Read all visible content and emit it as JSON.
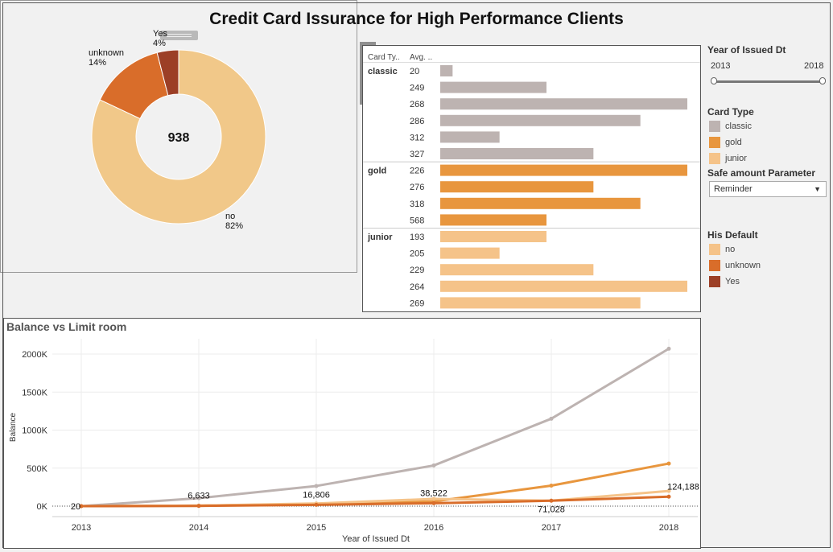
{
  "title": "Credit Card Issurance for High Performance Clients",
  "donut": {
    "center_label": "938",
    "slices": [
      {
        "name": "no",
        "pct_label": "82%",
        "value": 82,
        "color": "#f1c889"
      },
      {
        "name": "unknown",
        "pct_label": "14%",
        "value": 14,
        "color": "#d96d2a"
      },
      {
        "name": "Yes",
        "pct_label": "4%",
        "value": 4,
        "color": "#9c3f26"
      }
    ]
  },
  "bar_table": {
    "header_card": "Card Ty..",
    "header_avg": "Avg. ..",
    "groups": [
      {
        "name": "classic",
        "color": "#bdb3b1",
        "rows": [
          {
            "label": "20",
            "value": 0.05
          },
          {
            "label": "249",
            "value": 0.43
          },
          {
            "label": "268",
            "value": 1.0
          },
          {
            "label": "286",
            "value": 0.81
          },
          {
            "label": "312",
            "value": 0.24
          },
          {
            "label": "327",
            "value": 0.62
          }
        ]
      },
      {
        "name": "gold",
        "color": "#e8963e",
        "rows": [
          {
            "label": "226",
            "value": 1.0
          },
          {
            "label": "276",
            "value": 0.62
          },
          {
            "label": "318",
            "value": 0.81
          },
          {
            "label": "568",
            "value": 0.43
          }
        ]
      },
      {
        "name": "junior",
        "color": "#f5c389",
        "rows": [
          {
            "label": "193",
            "value": 0.43
          },
          {
            "label": "205",
            "value": 0.24
          },
          {
            "label": "229",
            "value": 0.62
          },
          {
            "label": "264",
            "value": 1.0
          },
          {
            "label": "269",
            "value": 0.81
          }
        ]
      }
    ]
  },
  "sidebar": {
    "year_header": "Year of Issued Dt",
    "year_min": "2013",
    "year_max": "2018",
    "card_type_header": "Card Type",
    "card_types": [
      {
        "label": "classic",
        "color": "#bdb3b1"
      },
      {
        "label": "gold",
        "color": "#e8963e"
      },
      {
        "label": "junior",
        "color": "#f5c389"
      }
    ],
    "safe_header": "Safe amount Parameter",
    "safe_value": "Reminder",
    "default_header": "His Default",
    "defaults": [
      {
        "label": "no",
        "color": "#f5c389"
      },
      {
        "label": "unknown",
        "color": "#d96d2a"
      },
      {
        "label": "Yes",
        "color": "#9c3f26"
      }
    ]
  },
  "toolbar": {
    "close": "✕",
    "export": "⇗",
    "filter": "⛉",
    "menu": "▾"
  },
  "chart_data": {
    "type": "line",
    "title": "Balance vs Limit room",
    "xlabel": "Year of Issued Dt",
    "ylabel": "Balance",
    "x": [
      2013,
      2014,
      2015,
      2016,
      2017,
      2018
    ],
    "ylim": [
      0,
      2150000
    ],
    "yticks": [
      0,
      500000,
      1000000,
      1500000,
      2000000
    ],
    "ytick_labels": [
      "0K",
      "500K",
      "1000K",
      "1500K",
      "2000K"
    ],
    "series": [
      {
        "color": "#bdb3b1",
        "values": [
          20,
          105000,
          265000,
          535000,
          1150000,
          2070000
        ]
      },
      {
        "color": "#e8963e",
        "values": [
          20,
          6633,
          28000,
          62000,
          270000,
          560000
        ]
      },
      {
        "color": "#f5c389",
        "values": [
          20,
          6633,
          35000,
          95000,
          71028,
          200000
        ]
      },
      {
        "color": "#d96d2a",
        "values": [
          20,
          3000,
          16806,
          38522,
          71028,
          124188
        ]
      }
    ],
    "data_labels": [
      {
        "x": 2013,
        "y": 20,
        "text": "20"
      },
      {
        "x": 2014,
        "y": 6633,
        "text": "6,633"
      },
      {
        "x": 2015,
        "y": 16806,
        "text": "16,806"
      },
      {
        "x": 2016,
        "y": 38522,
        "text": "38,522"
      },
      {
        "x": 2017,
        "y": 71028,
        "text": "71,028"
      },
      {
        "x": 2018,
        "y": 124188,
        "text": "124,188"
      }
    ]
  }
}
